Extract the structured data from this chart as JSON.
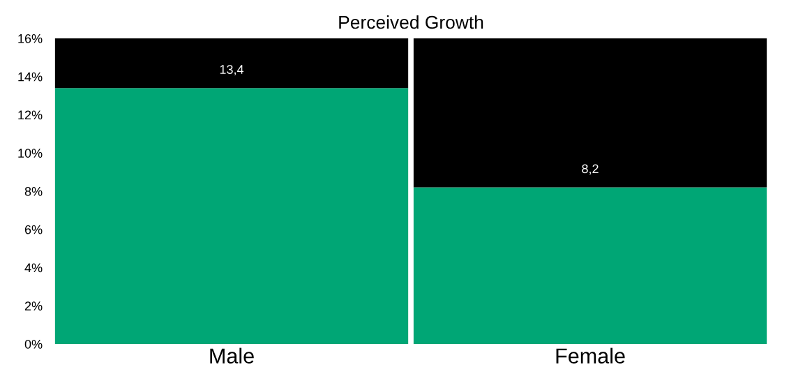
{
  "chart_data": {
    "type": "bar",
    "title": "Perceived Growth",
    "stacked": true,
    "categories": [
      "Male",
      "Female"
    ],
    "series": [
      {
        "color": "#00a675",
        "values": [
          13.4,
          8.2
        ],
        "value_labels": [
          "13,4",
          "8,2"
        ]
      },
      {
        "color": "#000000",
        "values": [
          2.6,
          7.8
        ]
      }
    ],
    "ylim": [
      0,
      16
    ],
    "yticks": [
      {
        "value": 0,
        "label": "0%"
      },
      {
        "value": 2,
        "label": "2%"
      },
      {
        "value": 4,
        "label": "4%"
      },
      {
        "value": 6,
        "label": "6%"
      },
      {
        "value": 8,
        "label": "8%"
      },
      {
        "value": 10,
        "label": "10%"
      },
      {
        "value": 12,
        "label": "12%"
      },
      {
        "value": 14,
        "label": "14%"
      },
      {
        "value": 16,
        "label": "16%"
      }
    ],
    "grid": false,
    "legend": false
  }
}
